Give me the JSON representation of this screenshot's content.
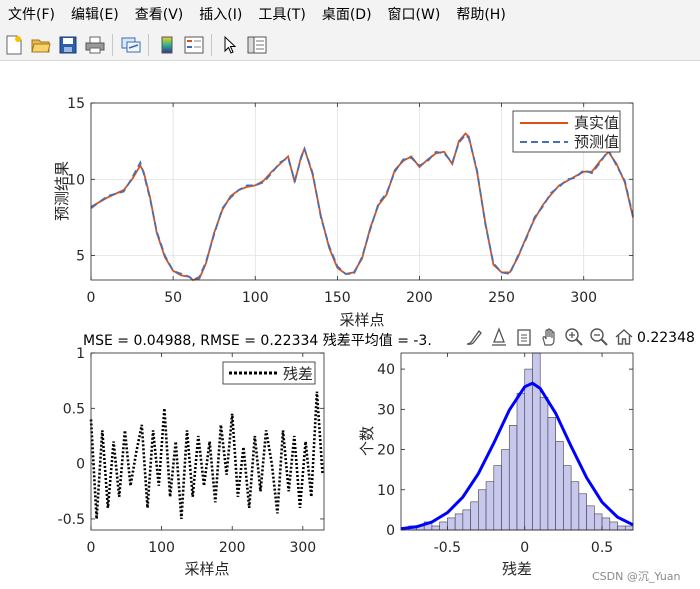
{
  "menu": [
    "文件(F)",
    "编辑(E)",
    "查看(V)",
    "插入(I)",
    "工具(T)",
    "桌面(D)",
    "窗口(W)",
    "帮助(H)"
  ],
  "toolbar": {
    "icons": [
      "new-figure-icon",
      "open-file-icon",
      "save-icon",
      "print-icon",
      "link-plot-icon",
      "insert-colorbar-icon",
      "insert-legend-icon",
      "edit-plot-icon",
      "property-inspector-icon"
    ]
  },
  "axes_toolbar": {
    "icons": [
      "brush-icon",
      "data-tips-icon",
      "export-icon",
      "pan-icon",
      "zoom-in-icon",
      "zoom-out-icon",
      "home-icon"
    ]
  },
  "title_text": "MSE = 0.04988, RMSE = 0.22334  残差平均值 = -3.",
  "title_tail": "0.22348",
  "watermark": "CSDN @沉_Yuan",
  "colors": {
    "true": "#d95319",
    "pred": "#4a6fb5",
    "resid": "#000000",
    "hist_bar": "#c8c8ee",
    "hist_curve": "#0000ff"
  },
  "chart_data": [
    {
      "type": "line",
      "xlabel": "采样点",
      "ylabel": "预测结果",
      "xlim": [
        0,
        330
      ],
      "ylim": [
        3.4,
        15
      ],
      "xticks": [
        0,
        50,
        100,
        150,
        200,
        250,
        300
      ],
      "yticks": [
        5,
        10,
        15
      ],
      "grid": true,
      "legend": "top-right",
      "series": [
        {
          "name": "真实值",
          "style": "solid",
          "x": [
            0,
            10,
            20,
            25,
            30,
            32,
            36,
            40,
            45,
            50,
            55,
            60,
            62,
            66,
            70,
            75,
            80,
            85,
            90,
            95,
            100,
            105,
            110,
            115,
            120,
            124,
            128,
            130,
            135,
            140,
            145,
            150,
            155,
            160,
            165,
            170,
            175,
            180,
            185,
            190,
            195,
            200,
            205,
            210,
            215,
            220,
            224,
            228,
            230,
            235,
            240,
            245,
            250,
            255,
            260,
            265,
            270,
            275,
            280,
            285,
            290,
            295,
            300,
            305,
            310,
            315,
            320,
            325,
            330
          ],
          "y": [
            8.2,
            8.8,
            9.3,
            10.0,
            10.9,
            10.5,
            8.8,
            6.5,
            4.9,
            4.0,
            3.7,
            3.6,
            3.4,
            3.5,
            4.5,
            6.5,
            8.0,
            8.9,
            9.3,
            9.5,
            9.6,
            9.9,
            10.5,
            11.0,
            11.5,
            9.8,
            11.5,
            12.0,
            10.3,
            7.6,
            5.5,
            4.2,
            3.8,
            3.9,
            4.8,
            6.8,
            8.3,
            9.0,
            10.6,
            11.2,
            11.5,
            10.8,
            11.3,
            11.7,
            11.8,
            11.0,
            12.5,
            13.0,
            12.8,
            10.5,
            7.2,
            4.4,
            3.9,
            3.9,
            4.9,
            6.2,
            7.4,
            8.3,
            9.0,
            9.6,
            9.9,
            10.2,
            10.5,
            10.5,
            11.2,
            11.8,
            11.0,
            9.8,
            7.5
          ]
        },
        {
          "name": "预测值",
          "style": "dashed",
          "x": [
            0,
            10,
            20,
            25,
            30,
            32,
            36,
            40,
            45,
            50,
            55,
            60,
            62,
            66,
            70,
            75,
            80,
            85,
            90,
            95,
            100,
            105,
            110,
            115,
            120,
            124,
            128,
            130,
            135,
            140,
            145,
            150,
            155,
            160,
            165,
            170,
            175,
            180,
            185,
            190,
            195,
            200,
            205,
            210,
            215,
            220,
            224,
            228,
            230,
            235,
            240,
            245,
            250,
            255,
            260,
            265,
            270,
            275,
            280,
            285,
            290,
            295,
            300,
            305,
            310,
            315,
            320,
            325,
            330
          ],
          "y": [
            8.1,
            8.9,
            9.2,
            10.1,
            11.1,
            10.4,
            8.7,
            6.6,
            5.0,
            4.0,
            3.8,
            3.6,
            3.4,
            3.6,
            4.6,
            6.4,
            8.1,
            8.8,
            9.3,
            9.6,
            9.6,
            9.8,
            10.4,
            11.1,
            11.4,
            9.9,
            11.4,
            12.0,
            10.4,
            7.5,
            5.6,
            4.3,
            3.8,
            3.8,
            4.9,
            6.7,
            8.4,
            9.1,
            10.5,
            11.3,
            11.4,
            10.9,
            11.2,
            11.8,
            11.7,
            11.1,
            12.4,
            12.9,
            12.7,
            10.6,
            7.1,
            4.5,
            3.9,
            3.8,
            5.0,
            6.1,
            7.5,
            8.2,
            9.1,
            9.5,
            10.0,
            10.1,
            10.6,
            10.4,
            11.1,
            11.9,
            10.9,
            9.9,
            7.6
          ]
        }
      ]
    },
    {
      "type": "line",
      "xlabel": "采样点",
      "ylabel": "",
      "xlim": [
        0,
        330
      ],
      "ylim": [
        -0.6,
        1
      ],
      "xticks": [
        0,
        100,
        200,
        300
      ],
      "yticks": [
        -0.5,
        0,
        0.5,
        1
      ],
      "grid": false,
      "legend": "top-right",
      "series": [
        {
          "name": "残差",
          "style": "dotted",
          "x": [
            0,
            8,
            16,
            24,
            32,
            40,
            48,
            56,
            64,
            72,
            80,
            88,
            96,
            104,
            112,
            120,
            128,
            136,
            144,
            152,
            160,
            168,
            176,
            184,
            192,
            200,
            208,
            216,
            224,
            232,
            240,
            248,
            256,
            264,
            272,
            280,
            288,
            296,
            304,
            312,
            320,
            328
          ],
          "y": [
            0.4,
            -0.5,
            0.3,
            -0.4,
            0.2,
            -0.3,
            0.3,
            -0.2,
            0.1,
            0.35,
            -0.4,
            0.3,
            -0.2,
            0.5,
            -0.3,
            0.2,
            -0.5,
            0.3,
            -0.3,
            0.25,
            -0.2,
            0.2,
            -0.35,
            0.35,
            -0.1,
            0.45,
            -0.3,
            0.15,
            -0.4,
            0.25,
            -0.25,
            0.3,
            0.0,
            -0.45,
            0.3,
            -0.25,
            0.25,
            -0.4,
            0.2,
            -0.3,
            0.65,
            -0.1
          ]
        }
      ]
    },
    {
      "type": "bar",
      "xlabel": "残差",
      "ylabel": "个数",
      "xlim": [
        -0.8,
        0.7
      ],
      "ylim": [
        0,
        44
      ],
      "xticks": [
        -0.5,
        0,
        0.5
      ],
      "yticks": [
        0,
        10,
        20,
        30,
        40
      ],
      "bins": [
        -0.75,
        -0.7,
        -0.65,
        -0.6,
        -0.55,
        -0.5,
        -0.45,
        -0.4,
        -0.35,
        -0.3,
        -0.25,
        -0.2,
        -0.15,
        -0.1,
        -0.05,
        0.0,
        0.05,
        0.1,
        0.15,
        0.2,
        0.25,
        0.3,
        0.35,
        0.4,
        0.45,
        0.5,
        0.55,
        0.6,
        0.65
      ],
      "counts": [
        1,
        1,
        2,
        1,
        2,
        3,
        4,
        5,
        7,
        10,
        12,
        16,
        20,
        26,
        34,
        40,
        44,
        33,
        28,
        22,
        16,
        12,
        9,
        6,
        4,
        3,
        2,
        1,
        1
      ],
      "fit_curve": {
        "x": [
          -0.8,
          -0.7,
          -0.6,
          -0.5,
          -0.4,
          -0.3,
          -0.2,
          -0.1,
          0.0,
          0.05,
          0.1,
          0.2,
          0.3,
          0.4,
          0.5,
          0.6,
          0.7
        ],
        "y": [
          0.3,
          0.8,
          2.0,
          4.3,
          8.2,
          14.0,
          21.6,
          29.8,
          35.6,
          36.5,
          35.2,
          29.0,
          20.8,
          13.0,
          6.9,
          3.2,
          1.3
        ]
      }
    }
  ]
}
